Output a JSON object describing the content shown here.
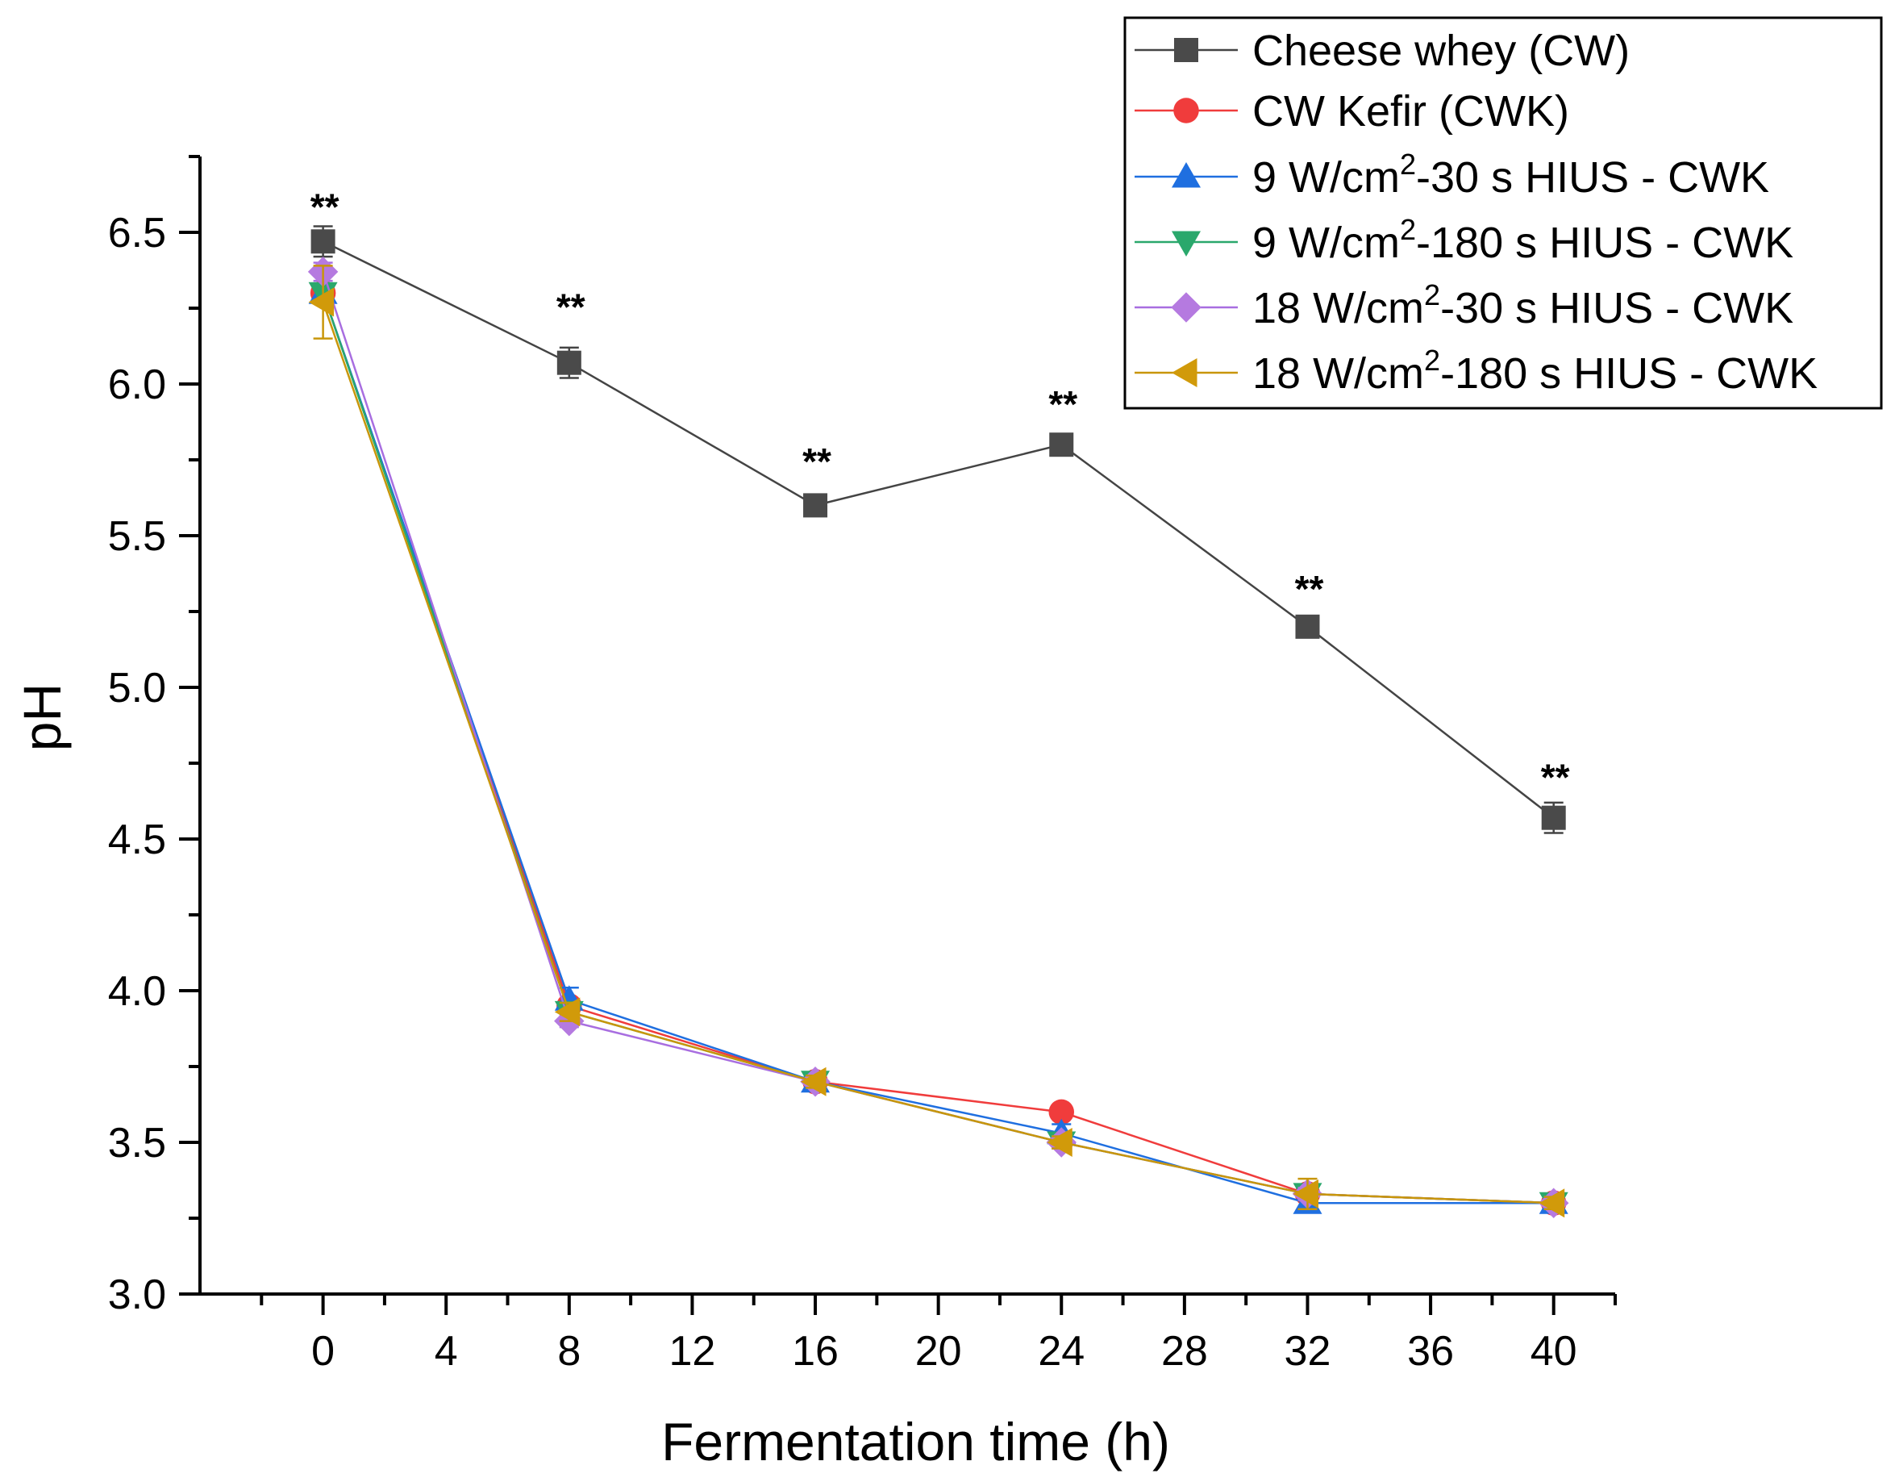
{
  "chart_data": {
    "type": "line",
    "title": "",
    "xlabel": "Fermentation time (h)",
    "ylabel": "pH",
    "xlim": [
      -4,
      42
    ],
    "ylim": [
      3.0,
      6.75
    ],
    "xticks": [
      "0",
      "4",
      "8",
      "12",
      "16",
      "20",
      "24",
      "28",
      "32",
      "36",
      "40"
    ],
    "yticks": [
      "3.0",
      "3.5",
      "4.0",
      "4.5",
      "5.0",
      "5.5",
      "6.0",
      "6.5"
    ],
    "x": [
      0,
      8,
      16,
      24,
      32,
      40
    ],
    "grid": false,
    "legend_position": "top-right",
    "series": [
      {
        "name": "Cheese whey (CW)",
        "name_parts": [
          "Cheese whey (CW)",
          "",
          ""
        ],
        "marker": "square",
        "color": "#4a4a4a",
        "line_color": "#444444",
        "values": [
          6.47,
          6.07,
          5.6,
          5.8,
          5.2,
          4.57
        ],
        "errors": [
          0.05,
          0.05,
          0.02,
          0.02,
          0.02,
          0.05
        ]
      },
      {
        "name": "CW Kefir (CWK)",
        "name_parts": [
          "CW Kefir (CWK)",
          "",
          ""
        ],
        "marker": "circle",
        "color": "#f03c3c",
        "line_color": "#f03c3c",
        "values": [
          6.3,
          3.95,
          3.7,
          3.6,
          3.33,
          3.3
        ],
        "errors": [
          0.02,
          0.02,
          0.02,
          0.02,
          0.02,
          0.02
        ]
      },
      {
        "name": "9 W/cm2-30 s HIUS - CWK",
        "name_parts": [
          "9 W/cm",
          "2",
          "-30 s HIUS - CWK"
        ],
        "marker": "triangle-up",
        "color": "#1f6fe0",
        "line_color": "#1f6fe0",
        "values": [
          6.3,
          3.97,
          3.7,
          3.53,
          3.3,
          3.3
        ],
        "errors": [
          0.03,
          0.04,
          0.02,
          0.03,
          0.02,
          0.02
        ]
      },
      {
        "name": "9 W/cm2-180 s HIUS - CWK",
        "name_parts": [
          "9 W/cm",
          "2",
          "-180 s HIUS - CWK"
        ],
        "marker": "triangle-down",
        "color": "#2aa86c",
        "line_color": "#2aa86c",
        "values": [
          6.3,
          3.93,
          3.7,
          3.5,
          3.33,
          3.3
        ],
        "errors": [
          0.03,
          0.03,
          0.02,
          0.02,
          0.02,
          0.02
        ]
      },
      {
        "name": "18 W/cm2-30 s HIUS - CWK",
        "name_parts": [
          "18 W/cm",
          "2",
          "-30 s HIUS - CWK"
        ],
        "marker": "diamond",
        "color": "#b57ae0",
        "line_color": "#a86ee0",
        "values": [
          6.37,
          3.9,
          3.7,
          3.5,
          3.33,
          3.3
        ],
        "errors": [
          0.03,
          0.02,
          0.02,
          0.02,
          0.02,
          0.02
        ]
      },
      {
        "name": "18 W/cm2-180 s HIUS - CWK",
        "name_parts": [
          "18 W/cm",
          "2",
          "-180 s HIUS - CWK"
        ],
        "marker": "triangle-left",
        "color": "#d19a0a",
        "line_color": "#c8960a",
        "values": [
          6.27,
          3.93,
          3.7,
          3.5,
          3.33,
          3.3
        ],
        "errors": [
          0.12,
          0.03,
          0.02,
          0.02,
          0.05,
          0.02
        ]
      }
    ],
    "annotations": [
      {
        "text": "**",
        "x": 0,
        "y": 6.6
      },
      {
        "text": "**",
        "x": 8,
        "y": 6.27
      },
      {
        "text": "**",
        "x": 16,
        "y": 5.76
      },
      {
        "text": "**",
        "x": 24,
        "y": 5.95
      },
      {
        "text": "**",
        "x": 32,
        "y": 5.34
      },
      {
        "text": "**",
        "x": 40,
        "y": 4.72
      }
    ]
  }
}
